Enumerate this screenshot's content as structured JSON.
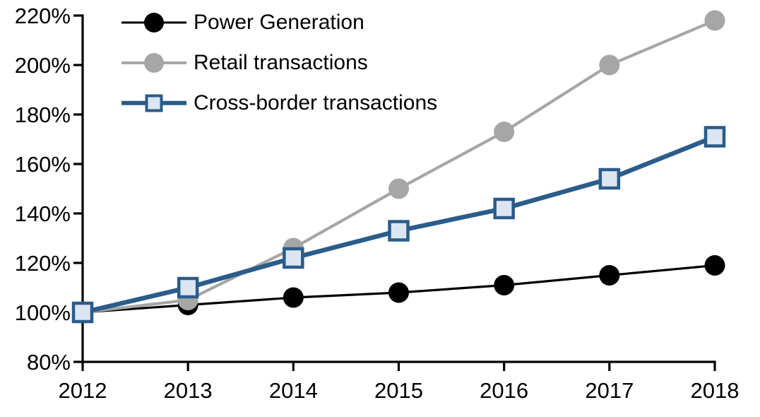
{
  "chart_data": {
    "type": "line",
    "title": "",
    "xlabel": "",
    "ylabel": "",
    "x": [
      2012,
      2013,
      2014,
      2015,
      2016,
      2017,
      2018
    ],
    "x_tick_labels": [
      "2012",
      "2013",
      "2014",
      "2015",
      "2016",
      "2017",
      "2018"
    ],
    "y_tick_labels": [
      "80%",
      "100%",
      "120%",
      "140%",
      "160%",
      "180%",
      "200%",
      "220%"
    ],
    "ylim": [
      80,
      220
    ],
    "y_tick_step": 20,
    "grid": false,
    "legend_position": "top-left",
    "axis_color": "#000000",
    "series": [
      {
        "name": "Power Generation",
        "color": "#000000",
        "marker": "circle",
        "marker_fill": "#000000",
        "line_width": 3.2,
        "values": [
          100,
          103,
          106,
          108,
          111,
          115,
          119
        ]
      },
      {
        "name": "Retail transactions",
        "color": "#A6A6A6",
        "marker": "circle",
        "marker_fill": "#A6A6A6",
        "line_width": 4.2,
        "values": [
          100,
          105,
          126,
          150,
          173,
          200,
          218
        ]
      },
      {
        "name": "Cross-border transactions",
        "color": "#2B5C8A",
        "marker": "square",
        "marker_fill": "#DCE6F1",
        "line_width": 6.5,
        "values": [
          100,
          110,
          122,
          133,
          142,
          154,
          171
        ]
      }
    ]
  }
}
